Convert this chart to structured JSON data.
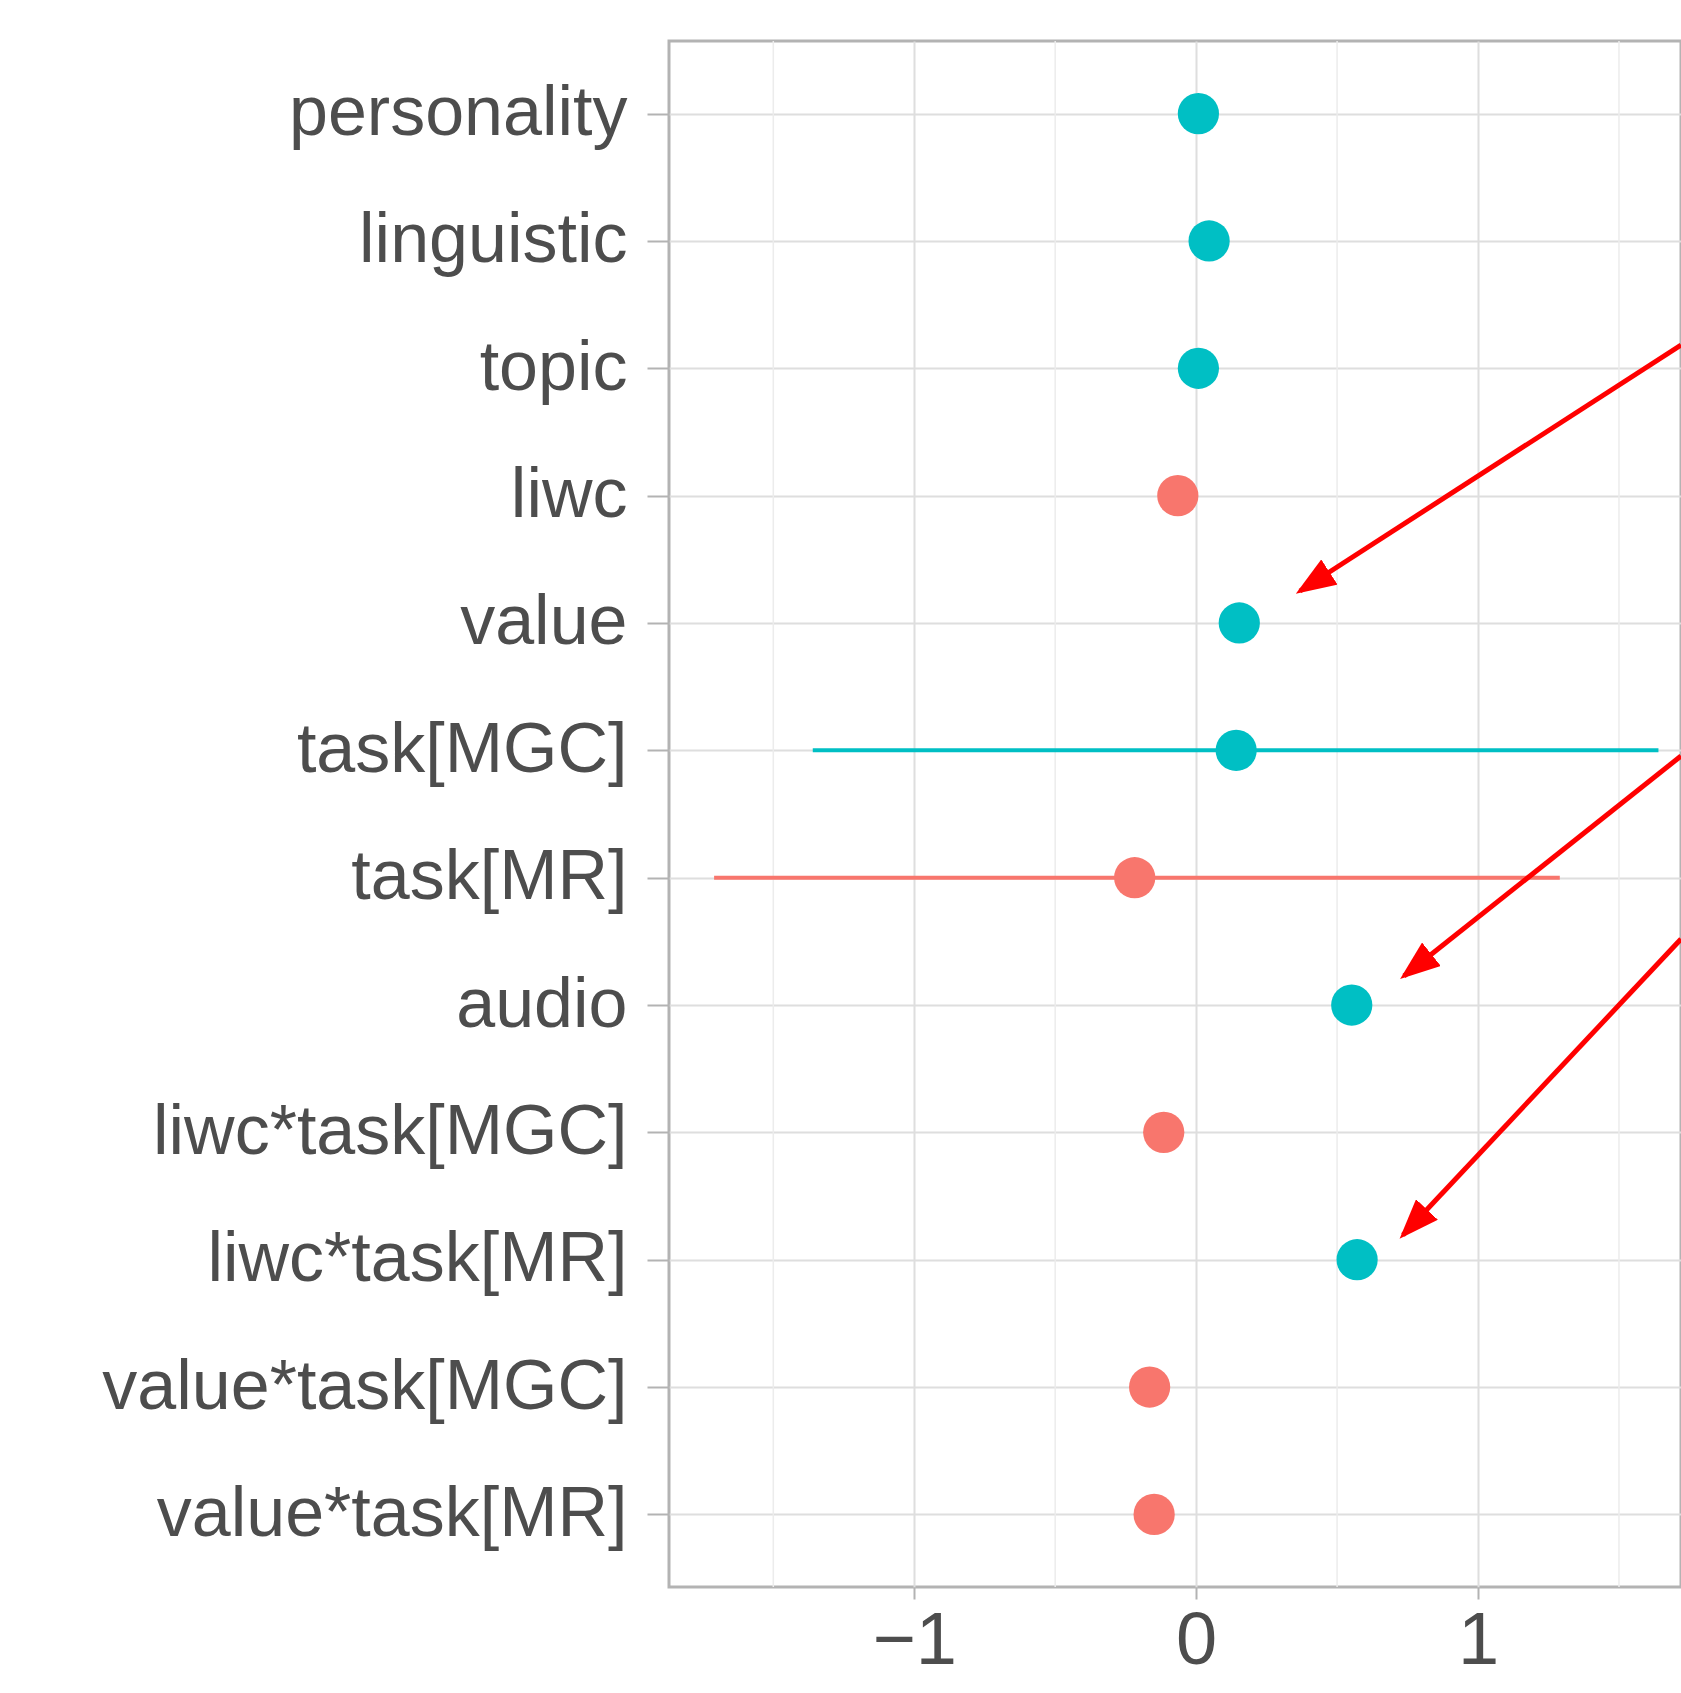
{
  "chart_data": {
    "type": "scatter",
    "orientation": "horizontal",
    "categories": [
      "personality",
      "linguistic",
      "topic",
      "liwc",
      "value",
      "task[MGC]",
      "task[MR]",
      "audio",
      "liwc*task[MGC]",
      "liwc*task[MR]",
      "value*task[MGC]",
      "value*task[MR]"
    ],
    "values": [
      0.008,
      0.046,
      0.008,
      -0.065,
      0.153,
      0.142,
      -0.218,
      0.552,
      -0.115,
      0.571,
      -0.165,
      -0.149
    ],
    "colors": [
      "#00bfc4",
      "#00bfc4",
      "#00bfc4",
      "#f8766d",
      "#00bfc4",
      "#00bfc4",
      "#f8766d",
      "#00bfc4",
      "#f8766d",
      "#00bfc4",
      "#f8766d",
      "#f8766d"
    ],
    "errors": [
      null,
      null,
      null,
      null,
      null,
      [
        -1.36,
        1.64
      ],
      [
        -1.71,
        1.29
      ],
      null,
      null,
      null,
      null,
      null
    ],
    "xlim": [
      -1.87,
      1.72
    ],
    "xticks": [
      {
        "value": -1.5,
        "label": null
      },
      -1,
      {
        "value": -0.5,
        "label": null
      },
      0,
      {
        "value": 0.5,
        "label": null
      },
      1,
      {
        "value": 1.5,
        "label": null
      }
    ],
    "grid": true,
    "marker": "circle"
  }
}
